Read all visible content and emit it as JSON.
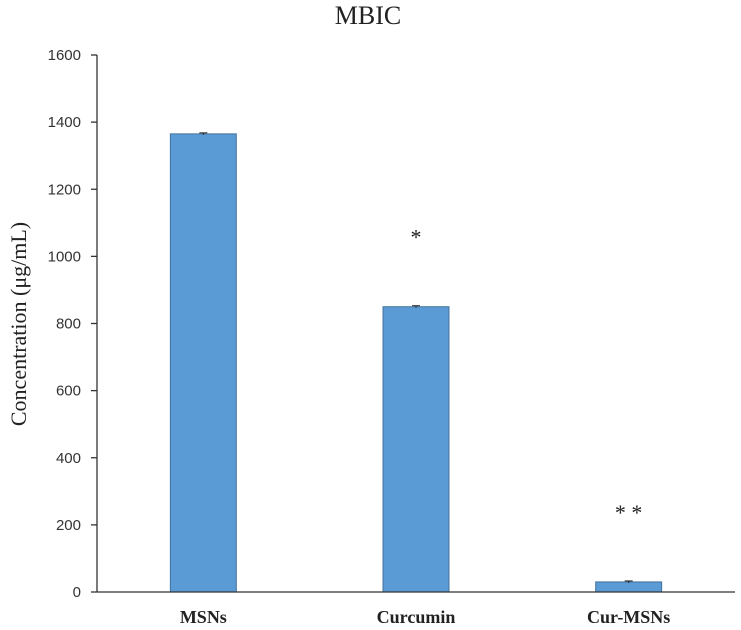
{
  "chart_data": {
    "type": "bar",
    "title": "MBIC",
    "ylabel": "Concentration (μg/mL)",
    "xlabel": "",
    "categories": [
      "MSNs",
      "Curcumin",
      "Cur-MSNs"
    ],
    "values": [
      1365,
      850,
      30
    ],
    "errors": [
      3,
      3,
      3
    ],
    "annotations": [
      "",
      "*",
      "**"
    ],
    "ylim": [
      0,
      1600
    ],
    "yticks": [
      0,
      200,
      400,
      600,
      800,
      1000,
      1200,
      1400,
      1600
    ],
    "grid": false,
    "bar_color": "#5b9bd5"
  }
}
